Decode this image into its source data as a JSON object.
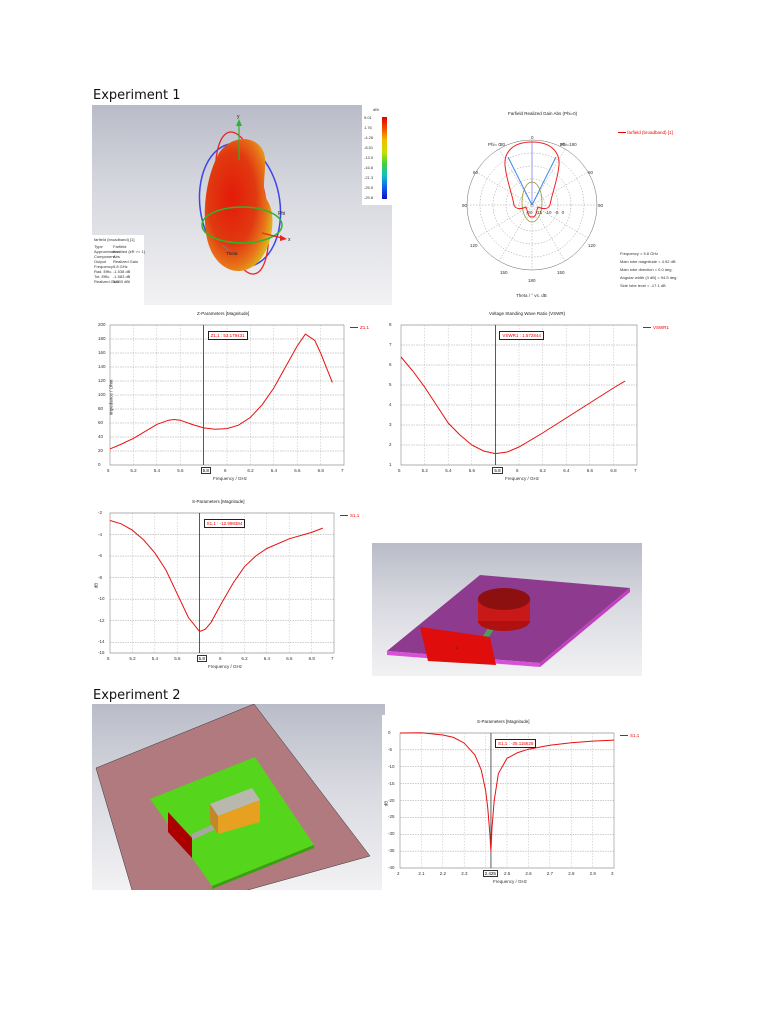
{
  "document": {
    "sections": [
      {
        "heading": "Experiment 1"
      },
      {
        "heading": "Experiment 2"
      }
    ]
  },
  "exp1": {
    "farfield3d": {
      "axes": {
        "x": "x",
        "y": "y",
        "z": "Theta",
        "phi": "Phi"
      },
      "colorbar": {
        "unit": "dBi",
        "ticks": [
          "5.01",
          "1.76",
          "-4.26",
          "-8.51",
          "-13.0",
          "-16.6",
          "-21.3",
          "-25.5",
          "-29.8"
        ]
      },
      "info": {
        "title": "farfield (broadband) [1]",
        "rows": [
          {
            "k": "Type",
            "v": "Farfield"
          },
          {
            "k": "Approximation",
            "v": "enabled (kR >> 1)"
          },
          {
            "k": "Component",
            "v": "Abs"
          },
          {
            "k": "Output",
            "v": "Realized Gain"
          },
          {
            "k": "Frequency",
            "v": "5.8 GHz"
          },
          {
            "k": "Rad. Effic.",
            "v": "-1.538 dB"
          },
          {
            "k": "Tot. Effic.",
            "v": "-1.583 dB"
          },
          {
            "k": "Realized Gain",
            "v": "5.033 dBi"
          }
        ]
      }
    },
    "polar": {
      "title": "Farfield Realized Gain Abs (Phi=0)",
      "legend": "farfield (broadband) [1]",
      "left_label": "Phi= 0",
      "right_label": "Phi=180",
      "angle_labels": [
        "0",
        "30",
        "30",
        "60",
        "60",
        "90",
        "90",
        "120",
        "120",
        "150",
        "150",
        "180"
      ],
      "radial_labels": [
        "-20",
        "-15",
        "-10",
        "-5",
        "0"
      ],
      "xlabel": "Theta / ° vs. dB",
      "stats": [
        "Frequency = 5.8 GHz",
        "Main lobe magnitude =    4.92 dB",
        "Main lobe direction =    0.0 deg.",
        "Angular width (3 dB) =   94.5 deg.",
        "Side lobe level =   -17.1 dB"
      ]
    },
    "model": {
      "description": "Cylindrical dielectric resonator on substrate with port"
    }
  },
  "exp2": {
    "model": {
      "description": "Rectangular resonator on green substrate with feed line and port"
    }
  },
  "chart_data": [
    {
      "id": "z-params",
      "type": "line",
      "title": "Z-Parameters [Magnitude]",
      "xlabel": "Frequency / GHz",
      "ylabel": "Impedance / Ohm",
      "xlim": [
        5,
        7
      ],
      "ylim": [
        0,
        200
      ],
      "xticks": [
        "5",
        "5.2",
        "5.4",
        "5.6",
        "5.8",
        "6",
        "6.2",
        "6.4",
        "6.6",
        "6.8",
        "7"
      ],
      "yticks": [
        "0",
        "20",
        "40",
        "60",
        "80",
        "100",
        "120",
        "140",
        "160",
        "180",
        "200"
      ],
      "grid": true,
      "legend": "Z1,1",
      "marker": {
        "x": 5.8,
        "label": "Z1,1 : 53.179431"
      },
      "series": [
        {
          "name": "Z1,1",
          "x": [
            5.0,
            5.1,
            5.2,
            5.3,
            5.4,
            5.5,
            5.55,
            5.6,
            5.7,
            5.8,
            5.9,
            6.0,
            6.1,
            6.2,
            6.3,
            6.4,
            6.5,
            6.6,
            6.67,
            6.75,
            6.8,
            6.9
          ],
          "values": [
            23,
            30,
            38,
            48,
            58,
            64,
            65,
            64,
            58,
            53,
            51,
            52,
            57,
            68,
            86,
            110,
            140,
            170,
            187,
            178,
            160,
            118
          ]
        }
      ]
    },
    {
      "id": "vswr",
      "type": "line",
      "title": "Voltage Standing Wave Ratio (VSWR)",
      "xlabel": "Frequency / GHz",
      "ylabel": "",
      "xlim": [
        5,
        7
      ],
      "ylim": [
        1,
        8
      ],
      "xticks": [
        "5",
        "5.2",
        "5.4",
        "5.6",
        "5.8",
        "6",
        "6.2",
        "6.4",
        "6.6",
        "6.8",
        "7"
      ],
      "yticks": [
        "1",
        "2",
        "3",
        "4",
        "5",
        "6",
        "7",
        "8"
      ],
      "grid": true,
      "legend": "VSWR1",
      "marker": {
        "x": 5.8,
        "label": "VSWR1 : 1.572844"
      },
      "series": [
        {
          "name": "VSWR1",
          "x": [
            5.0,
            5.1,
            5.2,
            5.3,
            5.4,
            5.5,
            5.6,
            5.7,
            5.8,
            5.9,
            6.0,
            6.2,
            6.4,
            6.6,
            6.8,
            6.9
          ],
          "values": [
            6.4,
            5.7,
            4.9,
            4.0,
            3.1,
            2.5,
            2.0,
            1.7,
            1.57,
            1.65,
            1.9,
            2.6,
            3.35,
            4.1,
            4.85,
            5.2
          ]
        }
      ]
    },
    {
      "id": "s-params-exp1",
      "type": "line",
      "title": "S-Parameters [Magnitude]",
      "xlabel": "Frequency / GHz",
      "ylabel": "dB",
      "xlim": [
        5,
        7
      ],
      "ylim": [
        -15,
        -2
      ],
      "xticks": [
        "5",
        "5.2",
        "5.4",
        "5.6",
        "5.8",
        "6",
        "6.2",
        "6.4",
        "6.6",
        "6.8",
        "7"
      ],
      "yticks": [
        "-2",
        "-4",
        "-6",
        "-8",
        "-10",
        "-12",
        "-14",
        "-15"
      ],
      "grid": true,
      "legend": "S1,1",
      "marker": {
        "x": 5.8,
        "label": "S1,1 : -12.998384"
      },
      "series": [
        {
          "name": "S1,1",
          "x": [
            5.0,
            5.1,
            5.2,
            5.3,
            5.4,
            5.5,
            5.6,
            5.7,
            5.8,
            5.85,
            5.9,
            6.0,
            6.1,
            6.2,
            6.3,
            6.4,
            6.6,
            6.8,
            6.9
          ],
          "values": [
            -2.7,
            -3.0,
            -3.6,
            -4.5,
            -5.7,
            -7.3,
            -9.5,
            -11.7,
            -13.0,
            -12.8,
            -12.2,
            -10.3,
            -8.5,
            -7.0,
            -6.0,
            -5.3,
            -4.4,
            -3.8,
            -3.4
          ]
        }
      ]
    },
    {
      "id": "s-params-exp2",
      "type": "line",
      "title": "S-Parameters [Magnitude]",
      "xlabel": "Frequency / GHz",
      "ylabel": "dB",
      "xlim": [
        2,
        3
      ],
      "ylim": [
        -40,
        0
      ],
      "xticks": [
        "2",
        "2.1",
        "2.2",
        "2.3",
        "2.425",
        "2.5",
        "2.6",
        "2.7",
        "2.8",
        "2.9",
        "3"
      ],
      "yticks": [
        "0",
        "-5",
        "-10",
        "-15",
        "-20",
        "-25",
        "-30",
        "-35",
        "-40"
      ],
      "grid": true,
      "legend": "S1,1",
      "marker": {
        "x": 2.425,
        "label": "S1,1 : -35.115625"
      },
      "series": [
        {
          "name": "S1,1",
          "x": [
            2.0,
            2.1,
            2.2,
            2.25,
            2.3,
            2.35,
            2.38,
            2.4,
            2.41,
            2.42,
            2.425,
            2.43,
            2.44,
            2.46,
            2.5,
            2.55,
            2.6,
            2.7,
            2.8,
            2.9,
            3.0
          ],
          "values": [
            0,
            0.1,
            -0.6,
            -1.3,
            -3.0,
            -6.5,
            -11,
            -17,
            -22,
            -30,
            -35,
            -28,
            -20,
            -12,
            -7.5,
            -5.8,
            -4.8,
            -3.6,
            -2.9,
            -2.4,
            -2.1
          ]
        }
      ]
    }
  ]
}
